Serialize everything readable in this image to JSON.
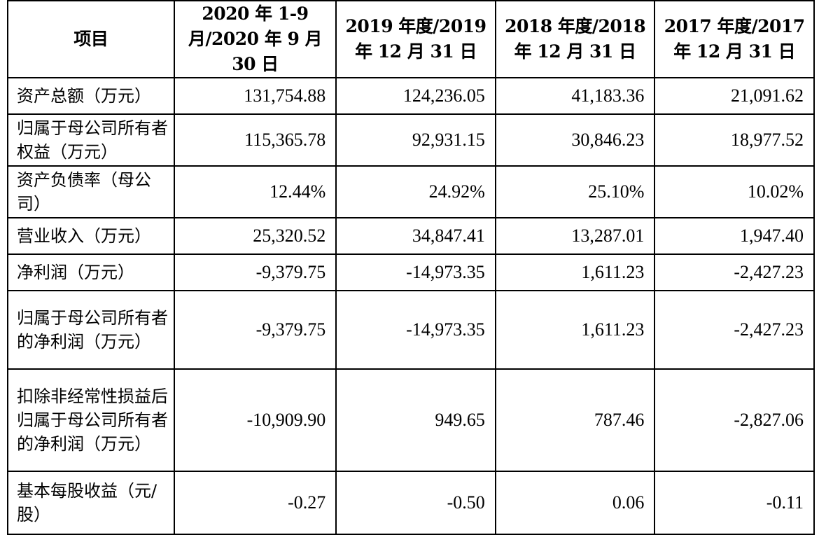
{
  "table": {
    "headers": [
      "项目",
      "2020 年 1-9 月/2020 年 9 月 30 日",
      "2019 年度/2019 年 12 月 31 日",
      "2018 年度/2018 年 12 月 31 日",
      "2017 年度/2017 年 12 月 31 日"
    ],
    "rows": [
      {
        "label": "资产总额（万元）",
        "values": [
          "131,754.88",
          "124,236.05",
          "41,183.36",
          "21,091.62"
        ]
      },
      {
        "label": "归属于母公司所有者权益（万元）",
        "values": [
          "115,365.78",
          "92,931.15",
          "30,846.23",
          "18,977.52"
        ]
      },
      {
        "label": "资产负债率（母公司）",
        "values": [
          "12.44%",
          "24.92%",
          "25.10%",
          "10.02%"
        ]
      },
      {
        "label": "营业收入（万元）",
        "values": [
          "25,320.52",
          "34,847.41",
          "13,287.01",
          "1,947.40"
        ]
      },
      {
        "label": "净利润（万元）",
        "values": [
          "-9,379.75",
          "-14,973.35",
          "1,611.23",
          "-2,427.23"
        ]
      },
      {
        "label": "归属于母公司所有者的净利润（万元）",
        "values": [
          "-9,379.75",
          "-14,973.35",
          "1,611.23",
          "-2,427.23"
        ]
      },
      {
        "label": "扣除非经常性损益后归属于母公司所有者的净利润（万元）",
        "values": [
          "-10,909.90",
          "949.65",
          "787.46",
          "-2,827.06"
        ]
      },
      {
        "label": "基本每股收益（元/股）",
        "values": [
          "-0.27",
          "-0.50",
          "0.06",
          "-0.11"
        ]
      }
    ]
  }
}
